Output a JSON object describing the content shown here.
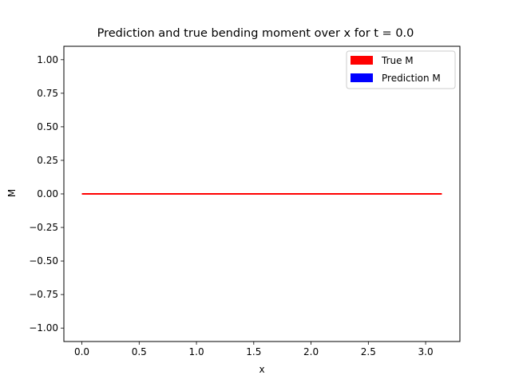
{
  "chart_data": {
    "type": "line",
    "title": "Prediction and true bending moment over x for t = 0.0",
    "xlabel": "x",
    "ylabel": "M",
    "xlim": [
      -0.157,
      3.299
    ],
    "ylim": [
      -1.1,
      1.1
    ],
    "xticks": [
      0.0,
      0.5,
      1.0,
      1.5,
      2.0,
      2.5,
      3.0
    ],
    "xtick_labels": [
      "0.0",
      "0.5",
      "1.0",
      "1.5",
      "2.0",
      "2.5",
      "3.0"
    ],
    "yticks": [
      -1.0,
      -0.75,
      -0.5,
      -0.25,
      0.0,
      0.25,
      0.5,
      0.75,
      1.0
    ],
    "ytick_labels": [
      "−1.00",
      "−0.75",
      "−0.50",
      "−0.25",
      "0.00",
      "0.25",
      "0.50",
      "0.75",
      "1.00"
    ],
    "grid": false,
    "legend_position": "top-right",
    "series": [
      {
        "name": "True M",
        "color": "#ff0000",
        "x": [
          0.0,
          3.1416
        ],
        "y": [
          0.0,
          0.0
        ]
      },
      {
        "name": "Prediction M",
        "color": "#0000ff",
        "x": [],
        "y": []
      }
    ]
  }
}
